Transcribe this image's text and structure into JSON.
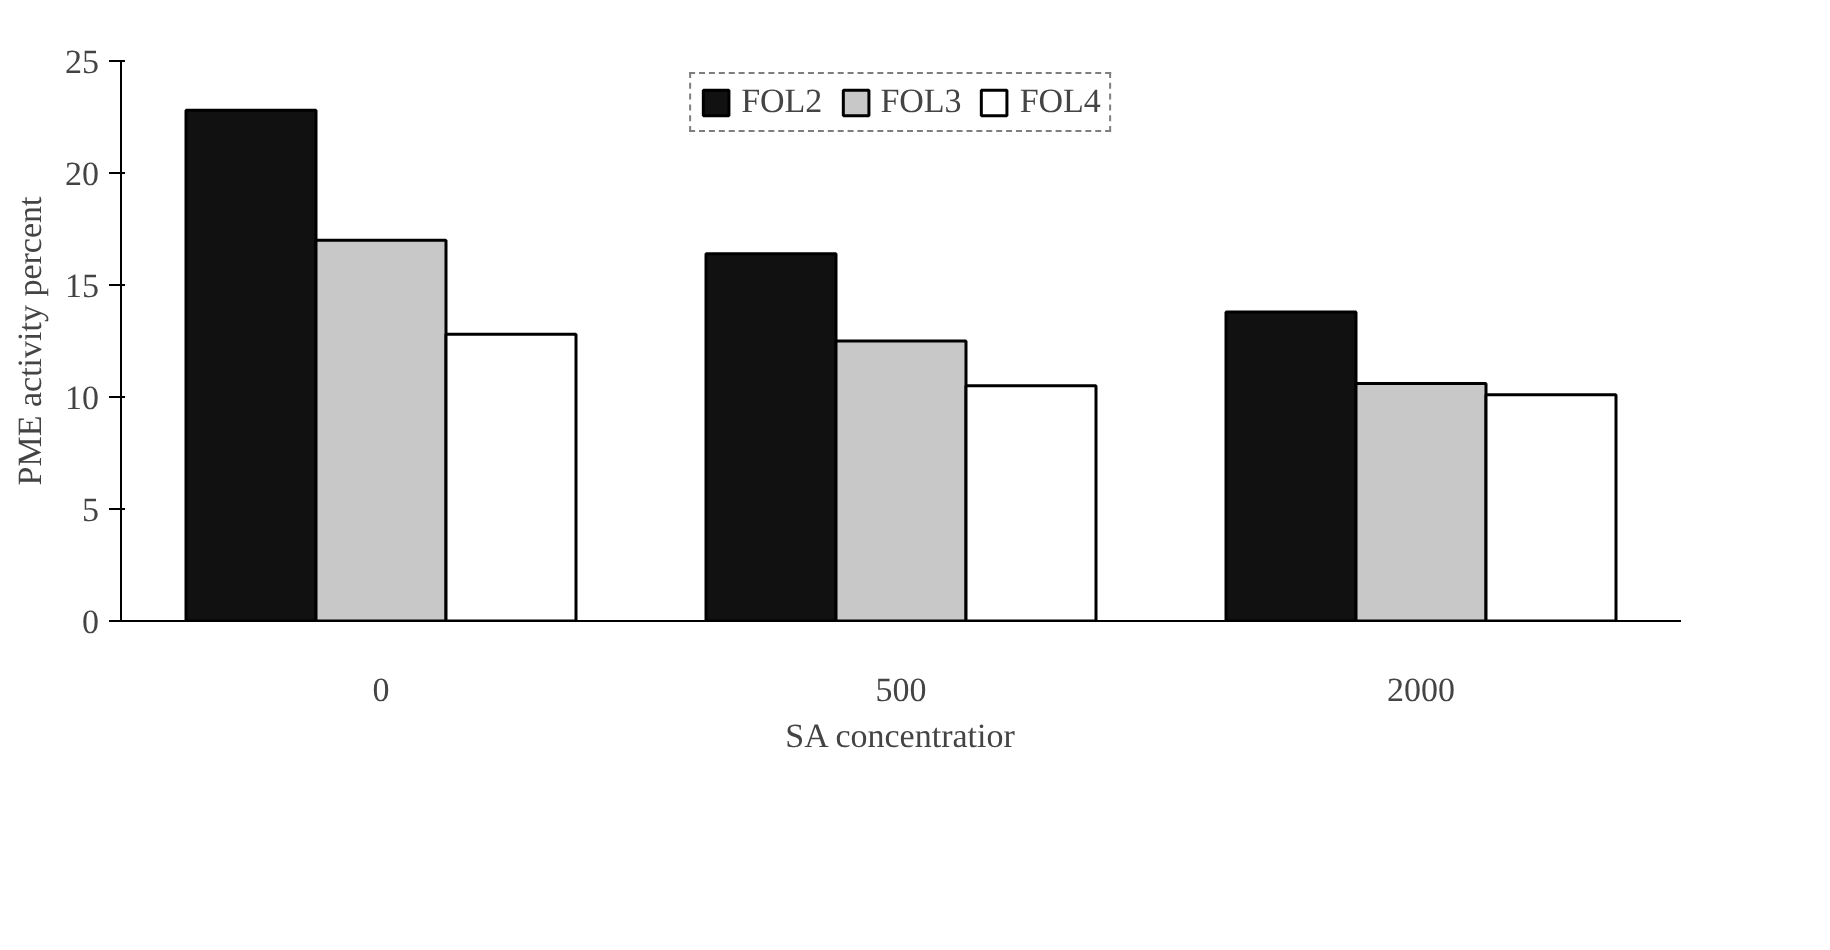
{
  "chart_data": {
    "type": "bar",
    "categories": [
      "0",
      "500",
      "2000"
    ],
    "xlabel": "SA concentratior",
    "ylabel": "PME activity percent",
    "series": [
      {
        "name": "FOL2",
        "color": "#111111",
        "values": [
          22.8,
          16.4,
          13.8
        ]
      },
      {
        "name": "FOL3",
        "color": "#c8c8c8",
        "values": [
          17.0,
          12.5,
          10.6
        ]
      },
      {
        "name": "FOL4",
        "color": "#ffffff",
        "values": [
          12.8,
          10.5,
          10.1
        ]
      }
    ],
    "ylim": [
      0,
      25
    ],
    "yticks": [
      0,
      5,
      10,
      15,
      20,
      25
    ],
    "grid": false,
    "legend": "top"
  }
}
